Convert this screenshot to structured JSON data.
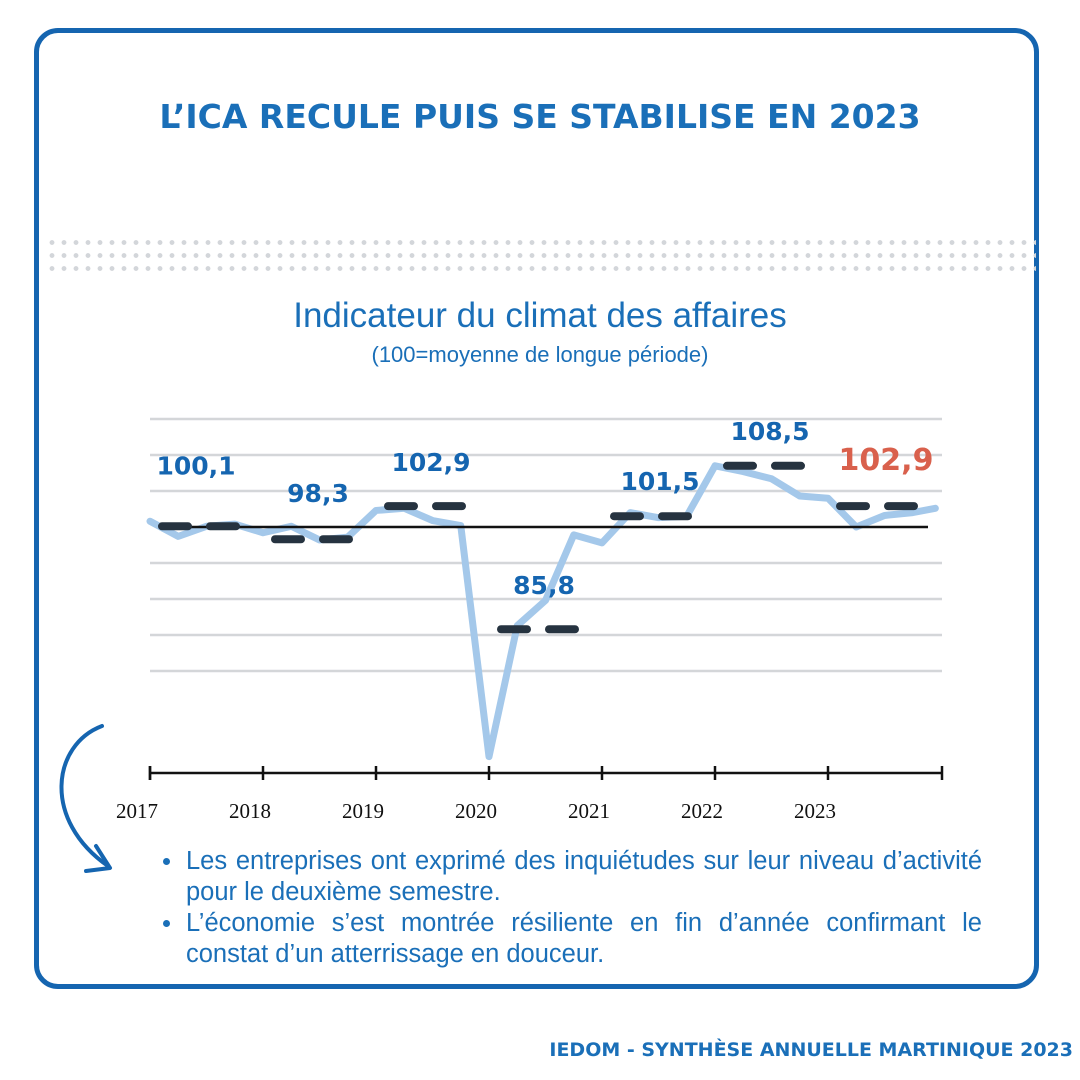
{
  "headline": "L’ICA RECULE PUIS SE STABILISE EN 2023",
  "chart_data": {
    "type": "line",
    "title": "Indicateur du climat des affaires",
    "subtitle": "(100=moyenne de longue période)",
    "x_ticks": [
      "2017",
      "2018",
      "2019",
      "2020",
      "2021",
      "2022",
      "2023"
    ],
    "reference_line": 100,
    "ylim": [
      66,
      113
    ],
    "gridlines": [
      115,
      110,
      105,
      100,
      95,
      90,
      85,
      80
    ],
    "grid": true,
    "series": [
      {
        "x": [
          2017.0,
          2017.25,
          2017.5,
          2017.75,
          2018.0,
          2018.25,
          2018.5,
          2018.75,
          2019.0,
          2019.25,
          2019.5,
          2019.75,
          2020.0,
          2020.25,
          2020.5,
          2020.75,
          2021.0,
          2021.25,
          2021.5,
          2021.75,
          2022.0,
          2022.25,
          2022.5,
          2022.75,
          2023.0,
          2023.25,
          2023.5,
          2023.75,
          2023.95
        ],
        "values": [
          100.8,
          98.7,
          100.1,
          100.4,
          99.2,
          100.1,
          98.2,
          98.6,
          102.3,
          102.6,
          100.9,
          100.2,
          68.1,
          86.3,
          89.8,
          98.9,
          97.8,
          102.0,
          101.3,
          101.5,
          108.5,
          107.7,
          106.7,
          104.3,
          104.0,
          100.0,
          101.6,
          102.0,
          102.6
        ]
      }
    ],
    "annual_averages": [
      {
        "year": "2017",
        "value": 100.1,
        "label": "100,1"
      },
      {
        "year": "2018",
        "value": 98.3,
        "label": "98,3"
      },
      {
        "year": "2019",
        "value": 102.9,
        "label": "102,9"
      },
      {
        "year": "2020",
        "value": 85.8,
        "label": "85,8"
      },
      {
        "year": "2021",
        "value": 101.5,
        "label": "101,5"
      },
      {
        "year": "2022",
        "value": 108.5,
        "label": "108,5"
      },
      {
        "year": "2023",
        "value": 102.9,
        "label": "102,9",
        "highlight": true
      }
    ],
    "colors": {
      "line": "#a4c8ea",
      "average": "#263340",
      "label": "#1565b0",
      "highlight": "#d9604c",
      "reference": "#111111"
    }
  },
  "bullets": [
    "Les entreprises ont exprimé des inquiétudes sur leur niveau d’activité pour le deuxième semestre.",
    "L’économie s’est montrée résiliente en fin d’année confirmant le constat d’un atterrissage en douceur."
  ],
  "footer": "IEDOM - SYNTHÈSE ANNUELLE MARTINIQUE 2023"
}
